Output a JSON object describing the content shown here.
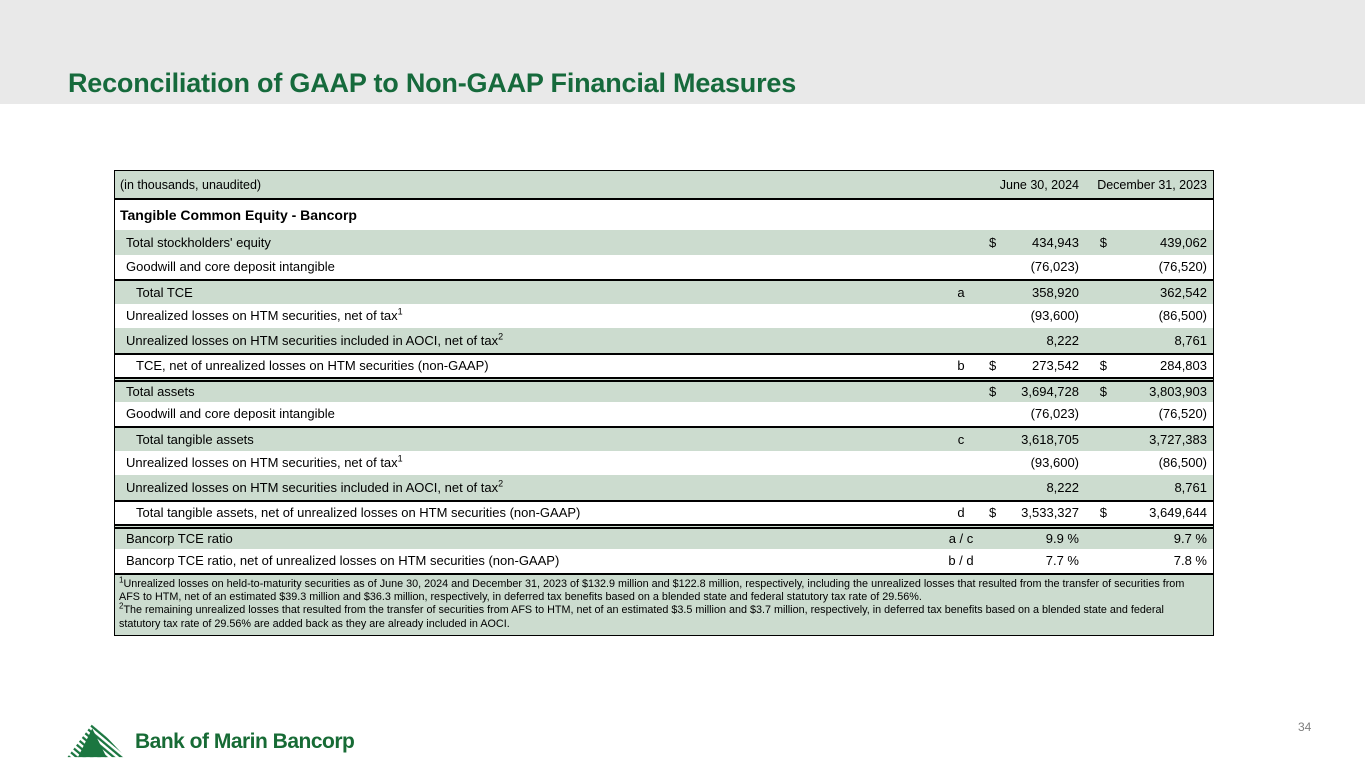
{
  "slide": {
    "title": "Reconciliation of GAAP to Non-GAAP Financial Measures",
    "page_number": "34"
  },
  "logo": {
    "icon": "mountain-logo-icon",
    "text": "Bank of Marin Bancorp",
    "color": "#176b35"
  },
  "colors": {
    "banner_bg": "#e9e9e9",
    "title_green": "#166a3c",
    "row_green": "#ccdccf"
  },
  "table": {
    "unit_label": "(in thousands, unaudited)",
    "columns": [
      "June 30, 2024",
      "December 31, 2023"
    ],
    "section_header": "Tangible Common Equity - Bancorp",
    "rows": [
      {
        "label": "Total stockholders' equity",
        "sup": "",
        "note": "",
        "d1": "$",
        "v1": "434,943",
        "d2": "$",
        "v2": "439,062",
        "indent": 1,
        "shade": "green",
        "border": "none"
      },
      {
        "label": "Goodwill and core deposit intangible",
        "sup": "",
        "note": "",
        "d1": "",
        "v1": "(76,023)",
        "d2": "",
        "v2": "(76,520)",
        "indent": 1,
        "shade": "white",
        "border": "none"
      },
      {
        "label": "Total TCE",
        "sup": "",
        "note": "a",
        "d1": "",
        "v1": "358,920",
        "d2": "",
        "v2": "362,542",
        "indent": 2,
        "shade": "green",
        "border": "single"
      },
      {
        "label": "Unrealized losses on HTM securities, net of tax",
        "sup": "1",
        "note": "",
        "d1": "",
        "v1": "(93,600)",
        "d2": "",
        "v2": "(86,500)",
        "indent": 1,
        "shade": "white",
        "border": "none"
      },
      {
        "label": "Unrealized losses on HTM securities included in AOCI, net of tax",
        "sup": "2",
        "note": "",
        "d1": "",
        "v1": "8,222",
        "d2": "",
        "v2": "8,761",
        "indent": 1,
        "shade": "green",
        "border": "none"
      },
      {
        "label": "TCE, net of unrealized losses on HTM securities (non-GAAP)",
        "sup": "",
        "note": "b",
        "d1": "$",
        "v1": "273,542",
        "d2": "$",
        "v2": "284,803",
        "indent": 2,
        "shade": "white",
        "border": "single"
      },
      {
        "label": "Total assets",
        "sup": "",
        "note": "",
        "d1": "$",
        "v1": "3,694,728",
        "d2": "$",
        "v2": "3,803,903",
        "indent": 1,
        "shade": "green",
        "border": "double"
      },
      {
        "label": "Goodwill and core deposit intangible",
        "sup": "",
        "note": "",
        "d1": "",
        "v1": "(76,023)",
        "d2": "",
        "v2": "(76,520)",
        "indent": 1,
        "shade": "white",
        "border": "none"
      },
      {
        "label": "Total tangible assets",
        "sup": "",
        "note": "c",
        "d1": "",
        "v1": "3,618,705",
        "d2": "",
        "v2": "3,727,383",
        "indent": 2,
        "shade": "green",
        "border": "single"
      },
      {
        "label": "Unrealized losses on HTM securities, net of tax",
        "sup": "1",
        "note": "",
        "d1": "",
        "v1": "(93,600)",
        "d2": "",
        "v2": "(86,500)",
        "indent": 1,
        "shade": "white",
        "border": "none"
      },
      {
        "label": "Unrealized losses on HTM securities included in AOCI, net of tax",
        "sup": "2",
        "note": "",
        "d1": "",
        "v1": "8,222",
        "d2": "",
        "v2": "8,761",
        "indent": 1,
        "shade": "green",
        "border": "none"
      },
      {
        "label": "Total tangible assets, net of unrealized losses on HTM securities (non-GAAP)",
        "sup": "",
        "note": "d",
        "d1": "$",
        "v1": "3,533,327",
        "d2": "$",
        "v2": "3,649,644",
        "indent": 2,
        "shade": "white",
        "border": "single"
      },
      {
        "label": "Bancorp TCE ratio",
        "sup": "",
        "note": "a / c",
        "d1": "",
        "v1": "9.9 %",
        "d2": "",
        "v2": "9.7 %",
        "indent": 1,
        "shade": "green",
        "border": "double"
      },
      {
        "label": "Bancorp TCE ratio, net of unrealized losses on HTM securities (non-GAAP)",
        "sup": "",
        "note": "b / d",
        "d1": "",
        "v1": "7.7 %",
        "d2": "",
        "v2": "7.8 %",
        "indent": 1,
        "shade": "white",
        "border": "none"
      }
    ],
    "footnotes": [
      {
        "sup": "1",
        "text": "Unrealized losses on held-to-maturity securities as of June 30, 2024 and December 31, 2023 of $132.9 million and $122.8 million, respectively, including the unrealized losses that resulted from the transfer of securities from AFS to HTM, net of an estimated $39.3 million and $36.3 million, respectively, in deferred tax benefits based on a blended state and federal statutory tax rate of 29.56%."
      },
      {
        "sup": "2",
        "text": "The remaining unrealized losses that resulted from the transfer of securities from AFS to HTM, net of an estimated $3.5 million and $3.7 million, respectively, in deferred tax benefits based on a blended state and federal statutory tax rate of 29.56% are added back as they are already included in AOCI."
      }
    ]
  }
}
